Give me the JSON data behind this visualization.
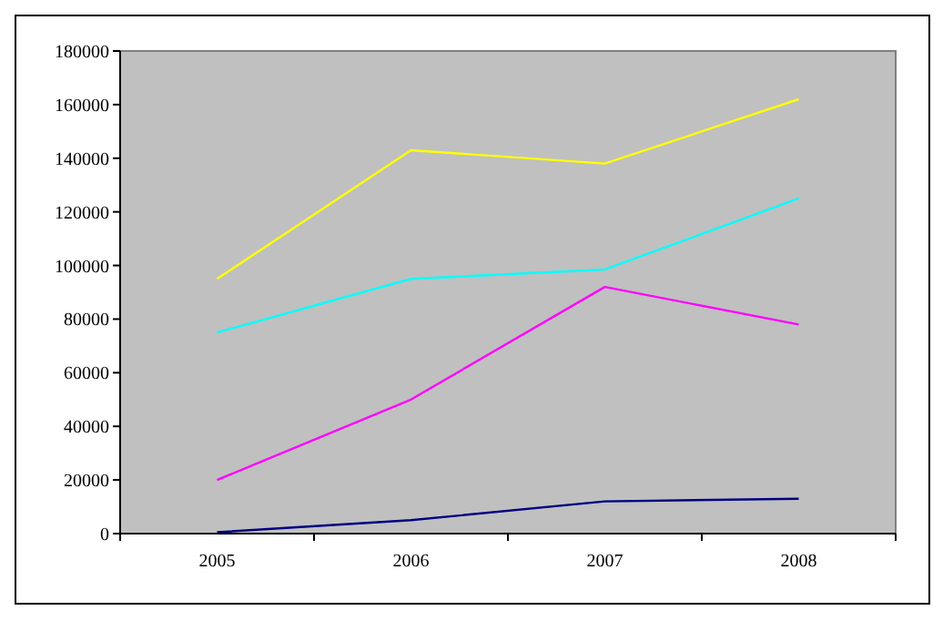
{
  "chart_data": {
    "type": "line",
    "categories": [
      "2005",
      "2006",
      "2007",
      "2008"
    ],
    "series": [
      {
        "color": "#ffff00",
        "values": [
          95000,
          143000,
          138000,
          162000
        ]
      },
      {
        "color": "#00ffff",
        "values": [
          75000,
          95000,
          98500,
          125000
        ]
      },
      {
        "color": "#ff00ff",
        "values": [
          20000,
          50000,
          92000,
          78000
        ]
      },
      {
        "color": "#000080",
        "values": [
          500,
          5000,
          12000,
          13000
        ]
      }
    ],
    "ylim": [
      0,
      180000
    ],
    "yticks": [
      0,
      20000,
      40000,
      60000,
      80000,
      100000,
      120000,
      140000,
      160000,
      180000
    ],
    "grid": false,
    "marker": "none",
    "line_style": "solid"
  }
}
